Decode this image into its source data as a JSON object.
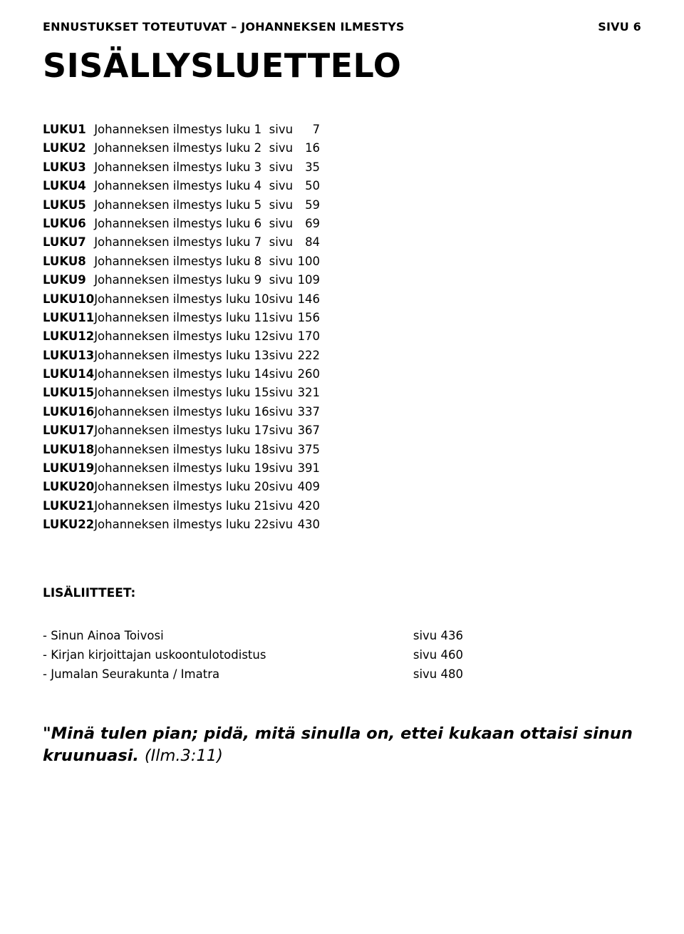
{
  "header": {
    "left": "ENNUSTUKSET TOTEUTUVAT – JOHANNEKSEN ILMESTYS",
    "right": "SIVU 6"
  },
  "title": "SISÄLLYSLUETTELO",
  "chapter_word": "LUKU",
  "desc_prefix": "Johanneksen ilmestys luku",
  "sivu_word": "sivu",
  "toc": [
    {
      "ch": "1",
      "page": "7"
    },
    {
      "ch": "2",
      "page": "16"
    },
    {
      "ch": "3",
      "page": "35"
    },
    {
      "ch": "4",
      "page": "50"
    },
    {
      "ch": "5",
      "page": "59"
    },
    {
      "ch": "6",
      "page": "69"
    },
    {
      "ch": "7",
      "page": "84"
    },
    {
      "ch": "8",
      "page": "100"
    },
    {
      "ch": "9",
      "page": "109"
    },
    {
      "ch": "10",
      "page": "146"
    },
    {
      "ch": "11",
      "page": "156"
    },
    {
      "ch": "12",
      "page": "170"
    },
    {
      "ch": "13",
      "page": "222"
    },
    {
      "ch": "14",
      "page": "260"
    },
    {
      "ch": "15",
      "page": "321"
    },
    {
      "ch": "16",
      "page": "337"
    },
    {
      "ch": "17",
      "page": "367"
    },
    {
      "ch": "18",
      "page": "375"
    },
    {
      "ch": "19",
      "page": "391"
    },
    {
      "ch": "20",
      "page": "409"
    },
    {
      "ch": "21",
      "page": "420"
    },
    {
      "ch": "22",
      "page": "430"
    }
  ],
  "appendix": {
    "title": "LISÄLIITTEET:",
    "items": [
      {
        "label": "- Sinun Ainoa Toivosi",
        "page": "sivu 436"
      },
      {
        "label": "- Kirjan kirjoittajan uskoontulotodistus",
        "page": "sivu 460"
      },
      {
        "label": "- Jumalan Seurakunta / Imatra",
        "page": "sivu 480"
      }
    ]
  },
  "closing": {
    "text": "\"Minä tulen pian; pidä, mitä sinulla on, ettei kukaan ottaisi sinun kruunuasi.",
    "ref": "(Ilm.3:11)"
  }
}
